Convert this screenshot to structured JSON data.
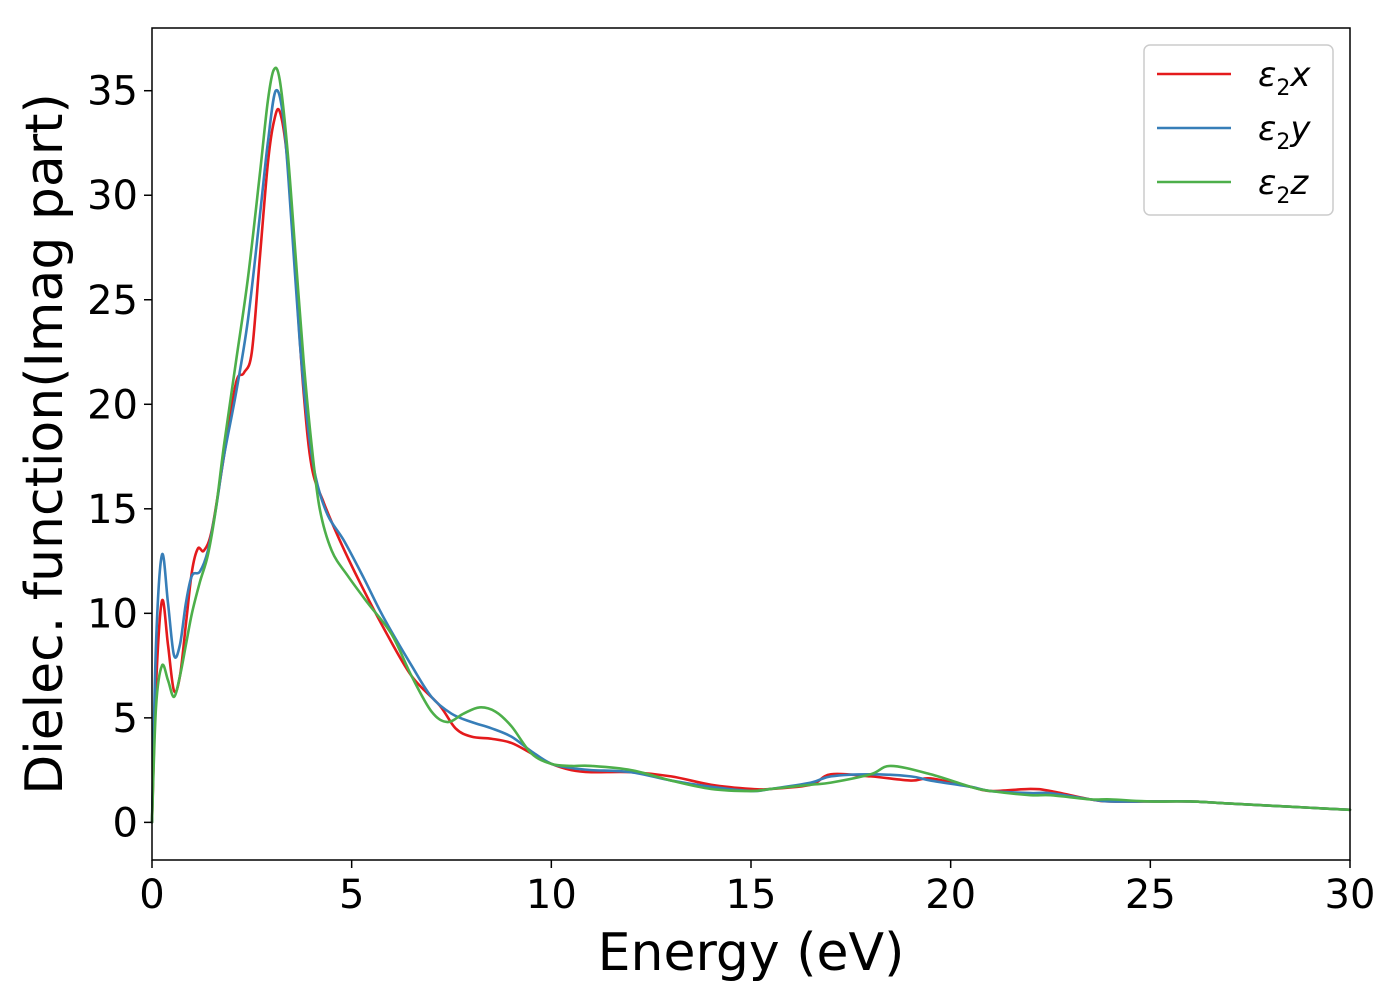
{
  "chart_data": {
    "type": "line",
    "title": "",
    "xlabel": "Energy (eV)",
    "ylabel": "Dielec. function(Imag part)",
    "xlim": [
      0,
      30
    ],
    "ylim": [
      -1.8,
      38
    ],
    "xticks": [
      0,
      5,
      10,
      15,
      20,
      25,
      30
    ],
    "yticks": [
      0,
      5,
      10,
      15,
      20,
      25,
      30,
      35
    ],
    "grid": false,
    "legend_position": "top-right",
    "series": [
      {
        "name": "ε2x",
        "legend_base": "ε",
        "legend_sub": "2",
        "legend_suffix": "x",
        "color": "#e41a1c",
        "x": [
          0,
          0.1,
          0.25,
          0.4,
          0.55,
          0.7,
          0.85,
          1.0,
          1.15,
          1.3,
          1.5,
          1.8,
          2.1,
          2.3,
          2.5,
          2.7,
          2.9,
          3.05,
          3.2,
          3.4,
          3.6,
          3.8,
          4.0,
          4.3,
          4.7,
          5.2,
          5.8,
          6.5,
          7.2,
          7.6,
          8.0,
          8.5,
          9.0,
          9.5,
          10.0,
          10.5,
          11.0,
          12.0,
          13.0,
          14.0,
          15.0,
          15.5,
          16.5,
          17.0,
          18.0,
          19.0,
          19.5,
          20.5,
          21.0,
          22.0,
          22.5,
          23.5,
          24.0,
          25.0,
          26.0,
          27.0,
          28.0,
          29.0,
          30.0
        ],
        "y": [
          0,
          6.5,
          10.6,
          8.5,
          6.3,
          7.0,
          9.5,
          12.0,
          13.1,
          13.0,
          14.0,
          17.5,
          21.0,
          21.5,
          22.5,
          27.0,
          31.5,
          33.5,
          34.0,
          31.5,
          26.0,
          20.5,
          17.0,
          15.3,
          13.5,
          11.5,
          9.3,
          7.0,
          5.6,
          4.5,
          4.1,
          4.0,
          3.8,
          3.3,
          2.8,
          2.5,
          2.4,
          2.4,
          2.2,
          1.8,
          1.6,
          1.6,
          1.8,
          2.3,
          2.2,
          2.0,
          2.1,
          1.7,
          1.5,
          1.6,
          1.5,
          1.1,
          1.0,
          1.0,
          1.0,
          0.9,
          0.8,
          0.7,
          0.6
        ]
      },
      {
        "name": "ε2y",
        "legend_base": "ε",
        "legend_sub": "2",
        "legend_suffix": "y",
        "color": "#377eb8",
        "x": [
          0,
          0.1,
          0.25,
          0.4,
          0.55,
          0.7,
          0.85,
          1.0,
          1.2,
          1.4,
          1.6,
          1.8,
          2.1,
          2.4,
          2.7,
          2.9,
          3.1,
          3.3,
          3.5,
          3.7,
          3.9,
          4.1,
          4.4,
          4.8,
          5.3,
          5.8,
          6.5,
          7.0,
          7.5,
          8.0,
          8.5,
          9.0,
          9.5,
          10.0,
          10.5,
          11.0,
          12.0,
          13.0,
          14.0,
          15.0,
          15.5,
          16.5,
          17.0,
          18.0,
          19.0,
          19.5,
          20.5,
          21.0,
          22.0,
          22.5,
          23.5,
          24.0,
          25.0,
          26.0,
          27.0,
          28.0,
          29.0,
          30.0
        ],
        "y": [
          0,
          8.5,
          12.8,
          10.5,
          8.0,
          8.5,
          10.5,
          11.8,
          12.0,
          13.0,
          15.0,
          17.5,
          20.5,
          24.0,
          29.0,
          32.5,
          35.0,
          33.5,
          28.5,
          23.0,
          19.0,
          16.5,
          14.7,
          13.5,
          11.7,
          9.8,
          7.5,
          6.0,
          5.2,
          4.8,
          4.5,
          4.1,
          3.4,
          2.8,
          2.6,
          2.5,
          2.4,
          2.0,
          1.7,
          1.5,
          1.6,
          1.9,
          2.2,
          2.3,
          2.2,
          2.0,
          1.7,
          1.5,
          1.4,
          1.4,
          1.1,
          1.0,
          1.0,
          1.0,
          0.9,
          0.8,
          0.7,
          0.6
        ]
      },
      {
        "name": "ε2z",
        "legend_base": "ε",
        "legend_sub": "2",
        "legend_suffix": "z",
        "color": "#4daf4a",
        "x": [
          0,
          0.1,
          0.25,
          0.4,
          0.55,
          0.7,
          0.85,
          1.0,
          1.2,
          1.4,
          1.6,
          1.8,
          2.1,
          2.4,
          2.7,
          2.9,
          3.05,
          3.2,
          3.4,
          3.6,
          3.8,
          4.0,
          4.2,
          4.5,
          4.9,
          5.4,
          6.0,
          6.5,
          7.0,
          7.4,
          7.8,
          8.2,
          8.6,
          9.0,
          9.5,
          10.0,
          10.5,
          11.0,
          12.0,
          13.0,
          14.0,
          15.0,
          15.5,
          16.5,
          17.0,
          18.0,
          18.5,
          19.5,
          20.5,
          21.0,
          22.0,
          22.5,
          23.5,
          24.0,
          25.0,
          26.0,
          27.0,
          28.0,
          29.0,
          30.0
        ],
        "y": [
          0,
          5.5,
          7.5,
          6.8,
          6.0,
          7.0,
          8.5,
          10.0,
          11.5,
          12.8,
          15.0,
          18.0,
          22.0,
          26.0,
          31.0,
          34.5,
          36.0,
          35.5,
          32.0,
          27.0,
          22.0,
          18.0,
          15.0,
          13.0,
          11.8,
          10.5,
          9.0,
          7.0,
          5.3,
          4.8,
          5.2,
          5.5,
          5.3,
          4.6,
          3.3,
          2.8,
          2.7,
          2.7,
          2.5,
          2.0,
          1.6,
          1.5,
          1.6,
          1.8,
          1.9,
          2.3,
          2.7,
          2.3,
          1.7,
          1.5,
          1.3,
          1.3,
          1.1,
          1.1,
          1.0,
          1.0,
          0.9,
          0.8,
          0.7,
          0.6
        ]
      }
    ]
  }
}
